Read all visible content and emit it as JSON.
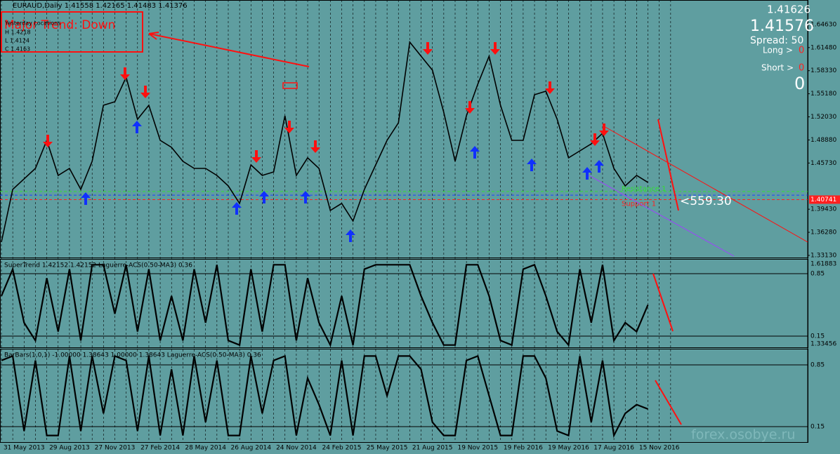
{
  "terminal": {
    "symbol_line": "EURAUD,Daily  1.41558 1.42165 1.41483 1.41376",
    "bid": "1.41626",
    "ask": "1.41576",
    "spread": "Spread: 50",
    "long_label": "Long >",
    "long_value": "0",
    "short_label": "Short >",
    "short_value": "0",
    "total": "0",
    "major_trend": "Major Trend: Down",
    "yesterday": {
      "title": "Yesterday Locations",
      "high": "H 1.4218",
      "low": "L 1.4124",
      "close": "C 1.4163"
    },
    "distance": "<559.30",
    "watermark": "forex.osobye.ru"
  },
  "chart_data": [
    {
      "type": "line",
      "categories": [
        null,
        null,
        "31 May 2013",
        null,
        null,
        null,
        "29 Aug 2013",
        null,
        null,
        null,
        "27 Nov 2013",
        null,
        null,
        null,
        "27 Feb 2014",
        null,
        null,
        null,
        "28 May 2014",
        null,
        null,
        null,
        "26 Aug 2014",
        null,
        null,
        null,
        "24 Nov 2014",
        null,
        null,
        null,
        "24 Feb 2015",
        null,
        null,
        null,
        "25 May 2015",
        null,
        null,
        null,
        "21 Aug 2015",
        null,
        null,
        null,
        "19 Nov 2015",
        null,
        null,
        null,
        "19 Feb 2016",
        null,
        null,
        null,
        "19 May 2016",
        null,
        null,
        null,
        "17 Aug 2016",
        null,
        null,
        null,
        "15 Nov 2016",
        null
      ],
      "series": [
        {
          "color": "#000000",
          "values": [
            1.3495,
            1.4213,
            1.4357,
            1.45,
            1.4883,
            1.4404,
            1.45,
            1.4213,
            1.4596,
            1.5361,
            1.5409,
            1.5744,
            1.517,
            1.5361,
            1.4883,
            1.4787,
            1.4596,
            1.45,
            1.45,
            1.4404,
            1.4261,
            1.4022,
            1.4548,
            1.4404,
            1.4452,
            1.5218,
            1.4404,
            1.4644,
            1.45,
            1.3926,
            1.4022,
            1.3782,
            1.4213,
            1.4548,
            1.4883,
            1.5122,
            1.6223,
            1.6031,
            1.584,
            1.5266,
            1.4596,
            1.5218,
            1.5649,
            1.6031,
            1.5361,
            1.4883,
            1.4883,
            1.5505,
            1.5553,
            1.517,
            1.4644,
            1.4739,
            1.4835,
            1.4979,
            1.45,
            1.4261,
            1.4404,
            1.4309,
            null,
            null
          ]
        }
      ],
      "ylim": [
        1.3284,
        1.6797
      ],
      "yticks": [
        {
          "value": 1.6463,
          "label": "1.64630"
        },
        {
          "value": 1.6148,
          "label": "1.61480"
        },
        {
          "value": 1.5833,
          "label": "1.58330"
        },
        {
          "value": 1.5518,
          "label": "1.55180"
        },
        {
          "value": 1.5203,
          "label": "1.52030"
        },
        {
          "value": 1.4888,
          "label": "1.48880"
        },
        {
          "value": 1.4573,
          "label": "1.45730"
        },
        {
          "value": 1.3943,
          "label": "1.39430"
        },
        {
          "value": 1.3628,
          "label": "1.36280"
        },
        {
          "value": 1.3313,
          "label": "1.33130"
        }
      ],
      "levels": [
        {
          "name": "Resistance 1",
          "value": 1.4185,
          "color": "#33dd33"
        },
        {
          "value": 1.4135,
          "color": "#2040ff"
        },
        {
          "name": "Support 1",
          "value": 1.40741,
          "label": "1.40741",
          "color": "#ff2020"
        }
      ]
    },
    {
      "type": "line",
      "title": "SuperTrend 1.42152 1.42152  Laguerre-ACS(0.50-MA3) 0.36",
      "series": [
        {
          "color": "#000000",
          "values": [
            0.6,
            0.9,
            0.3,
            0.1,
            0.8,
            0.2,
            0.9,
            0.1,
            0.95,
            0.95,
            0.4,
            0.95,
            0.2,
            0.9,
            0.1,
            0.6,
            0.1,
            0.9,
            0.3,
            0.95,
            0.1,
            0.05,
            0.9,
            0.2,
            0.95,
            0.95,
            0.1,
            0.8,
            0.3,
            0.05,
            0.6,
            0.05,
            0.9,
            0.95,
            0.95,
            0.95,
            0.95,
            0.6,
            0.3,
            0.05,
            0.05,
            0.95,
            0.95,
            0.6,
            0.1,
            0.05,
            0.9,
            0.95,
            0.6,
            0.2,
            0.05,
            0.9,
            0.3,
            0.95,
            0.1,
            0.3,
            0.2,
            0.5,
            null,
            null
          ]
        }
      ],
      "ylim": [
        0.024,
        1.015
      ],
      "yticks": [
        0.85,
        0.15
      ],
      "axis_labels": [
        "1.61883",
        "1.33456"
      ]
    },
    {
      "type": "line",
      "title": "BarBars(1,0,1) -1.00000 1.38643 1.00000 1.38643  Laguerre-ACS(0.50-MA3) 0.36",
      "series": [
        {
          "color": "#000000",
          "values": [
            0.9,
            0.95,
            0.1,
            0.9,
            0.05,
            0.05,
            0.95,
            0.1,
            0.95,
            0.3,
            0.95,
            0.9,
            0.1,
            0.95,
            0.05,
            0.8,
            0.05,
            0.95,
            0.2,
            0.9,
            0.05,
            0.05,
            0.95,
            0.3,
            0.9,
            0.95,
            0.05,
            0.7,
            0.4,
            0.05,
            0.9,
            0.05,
            0.95,
            0.95,
            0.5,
            0.95,
            0.95,
            0.8,
            0.2,
            0.05,
            0.05,
            0.9,
            0.95,
            0.5,
            0.05,
            0.05,
            0.95,
            0.95,
            0.7,
            0.1,
            0.05,
            0.95,
            0.2,
            0.9,
            0.05,
            0.3,
            0.4,
            0.35,
            null,
            null
          ]
        }
      ],
      "ylim": [
        -0.025,
        1.033
      ],
      "yticks": [
        0.85,
        0.15
      ]
    }
  ]
}
